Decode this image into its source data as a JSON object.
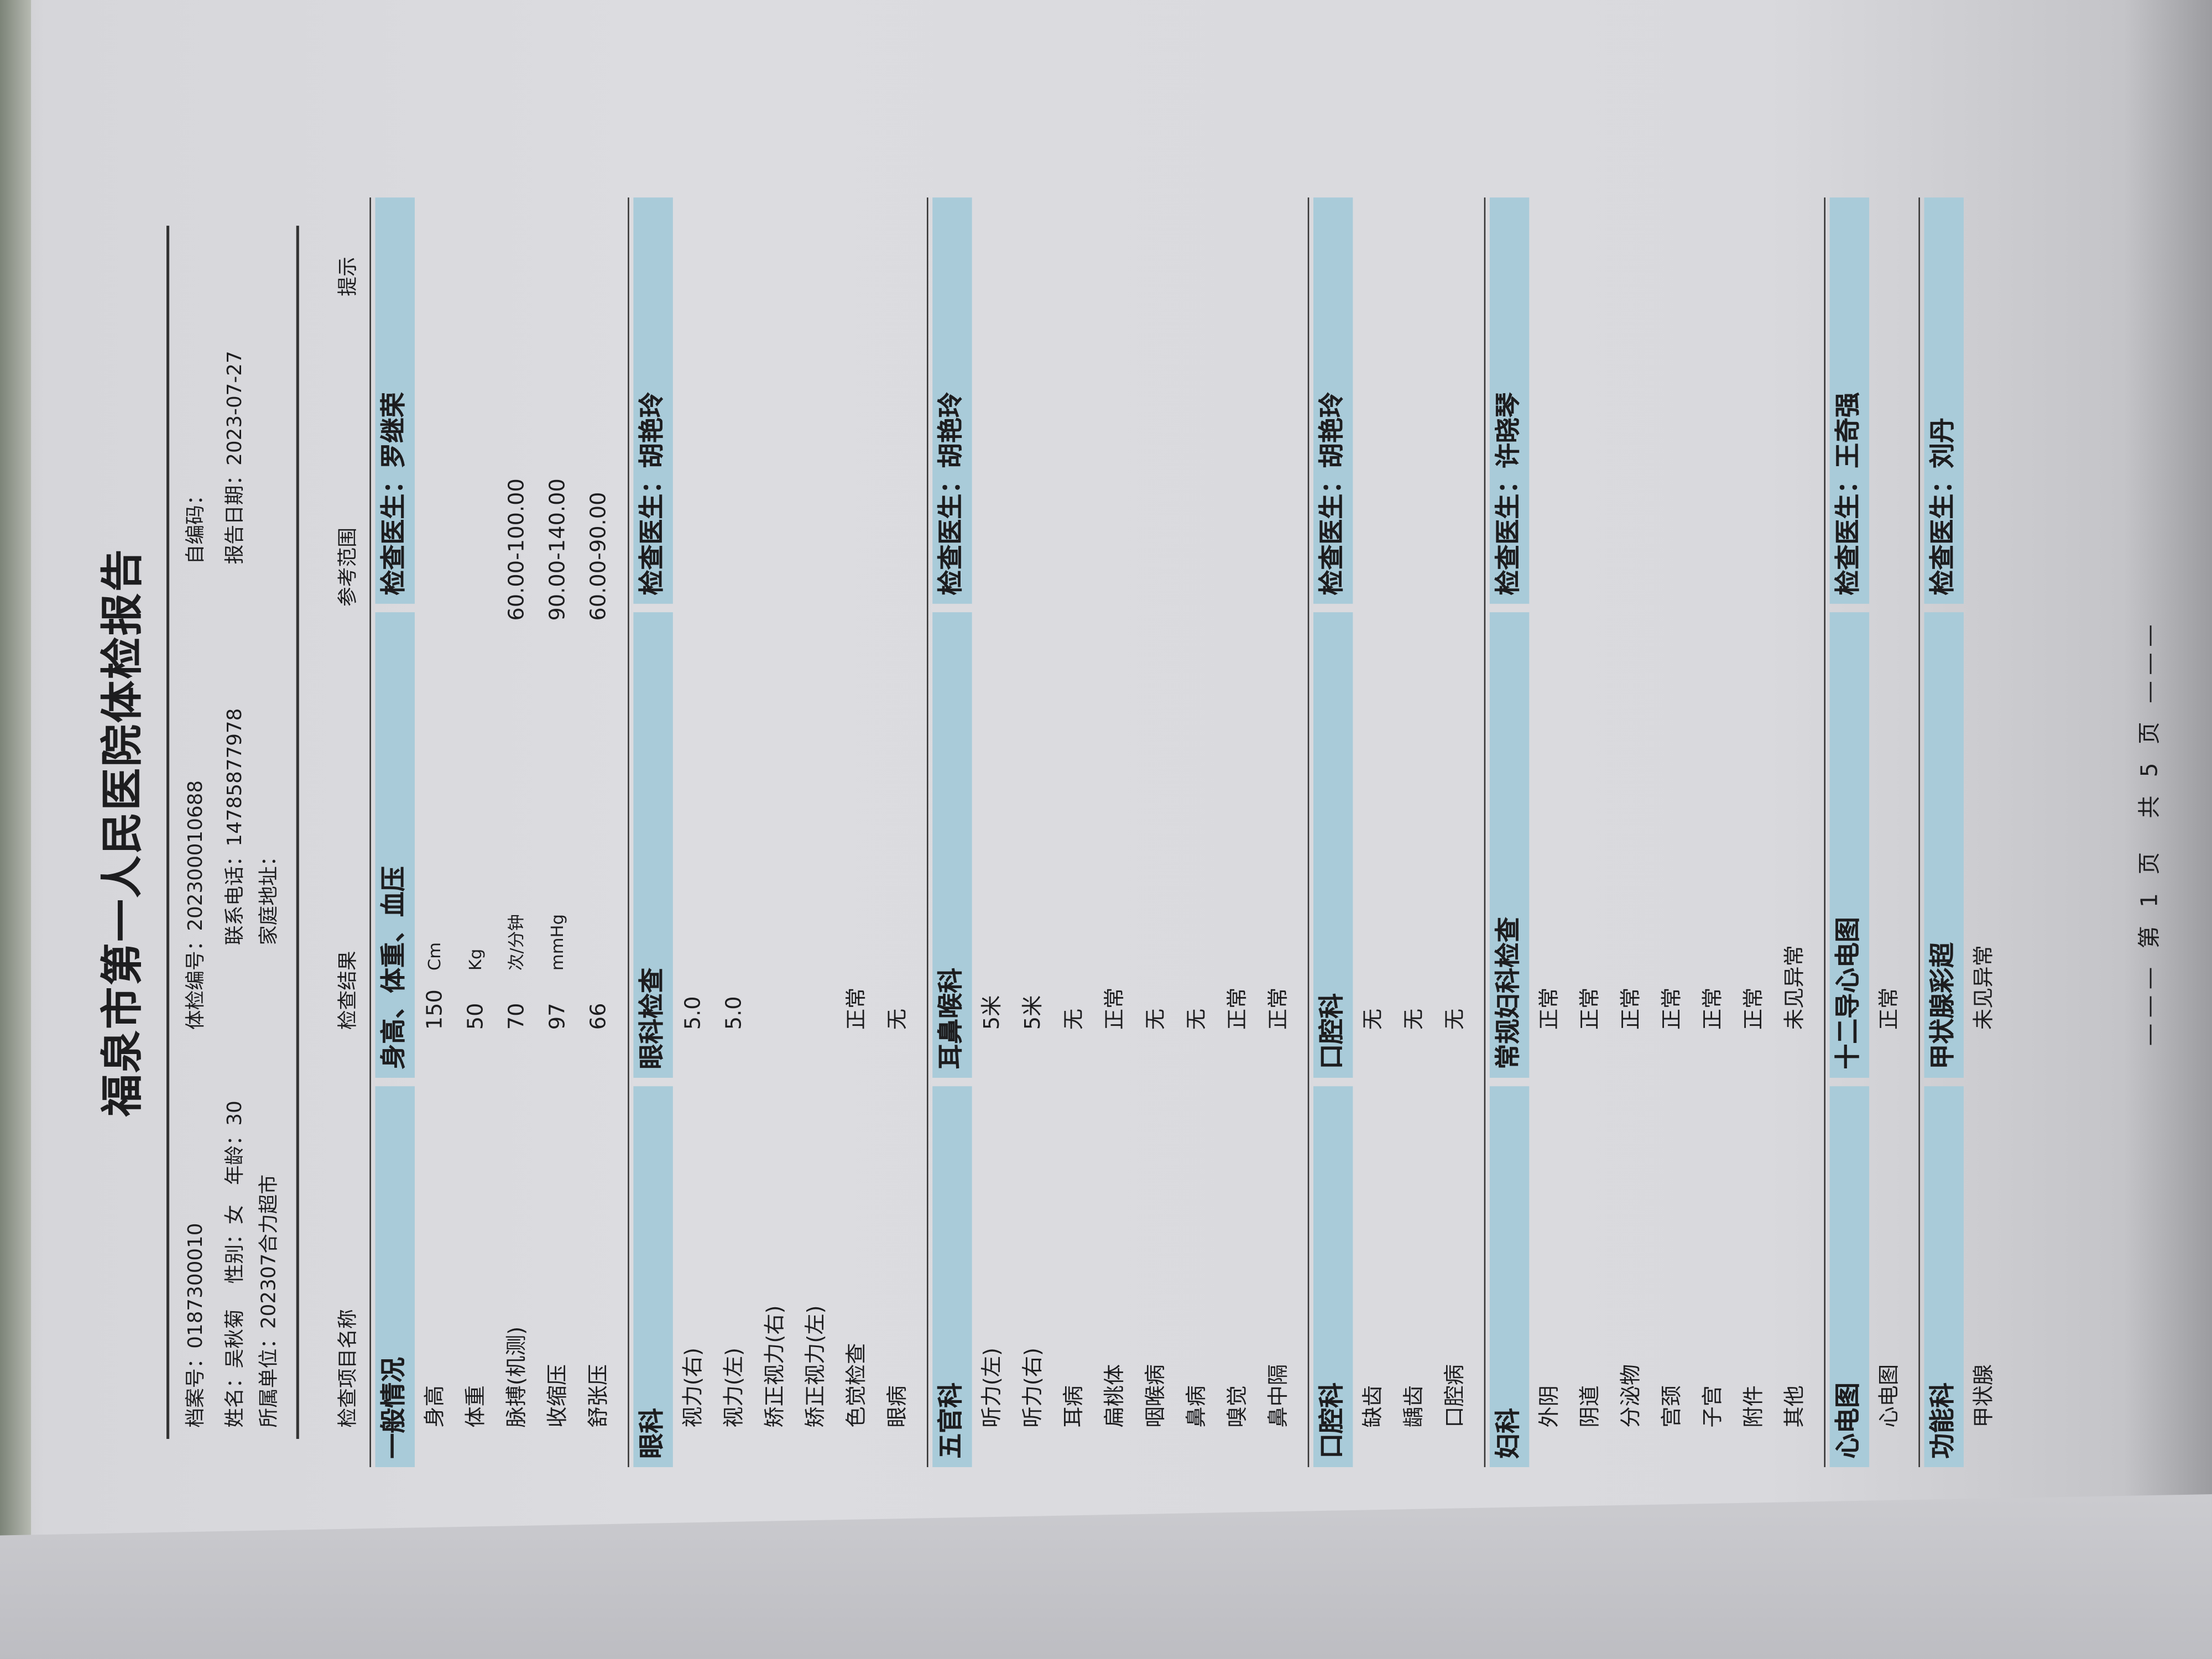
{
  "title": "福泉市第一人民医院体检报告",
  "header": {
    "file_no": "档案号：0187300010",
    "exam_no": "体检编号：202300010688",
    "self_code": "自编码：",
    "name": "姓名：吴秋菊",
    "gender": "性别：女",
    "age": "年龄：30",
    "phone": "联系电话：14785877978",
    "report_date": "报告日期：2023-07-27",
    "unit": "所属单位：202307合力超市",
    "address": "家庭地址："
  },
  "columns": [
    "检查项目名称",
    "检查结果",
    "参考范围",
    "提示"
  ],
  "sections": [
    {
      "dept": "一般情况",
      "exam": "身高、体重、血压",
      "doctor": "检查医生：罗继荣",
      "rows": [
        {
          "item": "身高",
          "result": "150",
          "unit": "Cm",
          "ref": ""
        },
        {
          "item": "体重",
          "result": "50",
          "unit": "Kg",
          "ref": ""
        },
        {
          "item": "脉搏(机测)",
          "result": "70",
          "unit": "次/分钟",
          "ref": "60.00-100.00"
        },
        {
          "item": "收缩压",
          "result": "97",
          "unit": "mmHg",
          "ref": "90.00-140.00"
        },
        {
          "item": "舒张压",
          "result": "66",
          "unit": "",
          "ref": "60.00-90.00"
        }
      ]
    },
    {
      "dept": "眼科",
      "exam": "眼科检查",
      "doctor": "检查医生：胡艳玲",
      "rows": [
        {
          "item": "视力(右)",
          "result": "5.0"
        },
        {
          "item": "视力(左)",
          "result": "5.0"
        },
        {
          "item": "矫正视力(右)",
          "result": ""
        },
        {
          "item": "矫正视力(左)",
          "result": ""
        },
        {
          "item": "色觉检查",
          "result": "正常"
        },
        {
          "item": "眼病",
          "result": "无"
        }
      ]
    },
    {
      "dept": "五官科",
      "exam": "耳鼻喉科",
      "doctor": "检查医生：胡艳玲",
      "rows": [
        {
          "item": "听力(左)",
          "result": "5米"
        },
        {
          "item": "听力(右)",
          "result": "5米"
        },
        {
          "item": "耳病",
          "result": "无"
        },
        {
          "item": "扁桃体",
          "result": "正常"
        },
        {
          "item": "咽喉病",
          "result": "无"
        },
        {
          "item": "鼻病",
          "result": "无"
        },
        {
          "item": "嗅觉",
          "result": "正常"
        },
        {
          "item": "鼻中隔",
          "result": "正常"
        }
      ]
    },
    {
      "dept": "口腔科",
      "exam": "口腔科",
      "doctor": "检查医生：胡艳玲",
      "rows": [
        {
          "item": "缺齿",
          "result": "无"
        },
        {
          "item": "龋齿",
          "result": "无"
        },
        {
          "item": "口腔病",
          "result": "无"
        }
      ]
    },
    {
      "dept": "妇科",
      "exam": "常规妇科检查",
      "doctor": "检查医生：许晓琴",
      "rows": [
        {
          "item": "外阴",
          "result": "正常"
        },
        {
          "item": "阴道",
          "result": "正常"
        },
        {
          "item": "分泌物",
          "result": "正常"
        },
        {
          "item": "宫颈",
          "result": "正常"
        },
        {
          "item": "子宫",
          "result": "正常"
        },
        {
          "item": "附件",
          "result": "正常"
        },
        {
          "item": "其他",
          "result": "未见异常"
        }
      ]
    },
    {
      "dept": "心电图",
      "exam": "十二导心电图",
      "doctor": "检查医生：王奇强",
      "rows": [
        {
          "item": "心电图",
          "result": "正常"
        }
      ]
    },
    {
      "dept": "功能科",
      "exam": "甲状腺彩超",
      "doctor": "检查医生：刘丹",
      "rows": [
        {
          "item": "甲状腺",
          "result": "未见异常"
        }
      ]
    }
  ],
  "footer": "——— 第 1 页　共 5 页 ———",
  "colors": {
    "band": "#a9cbd9",
    "paper": "#dcdce0"
  }
}
